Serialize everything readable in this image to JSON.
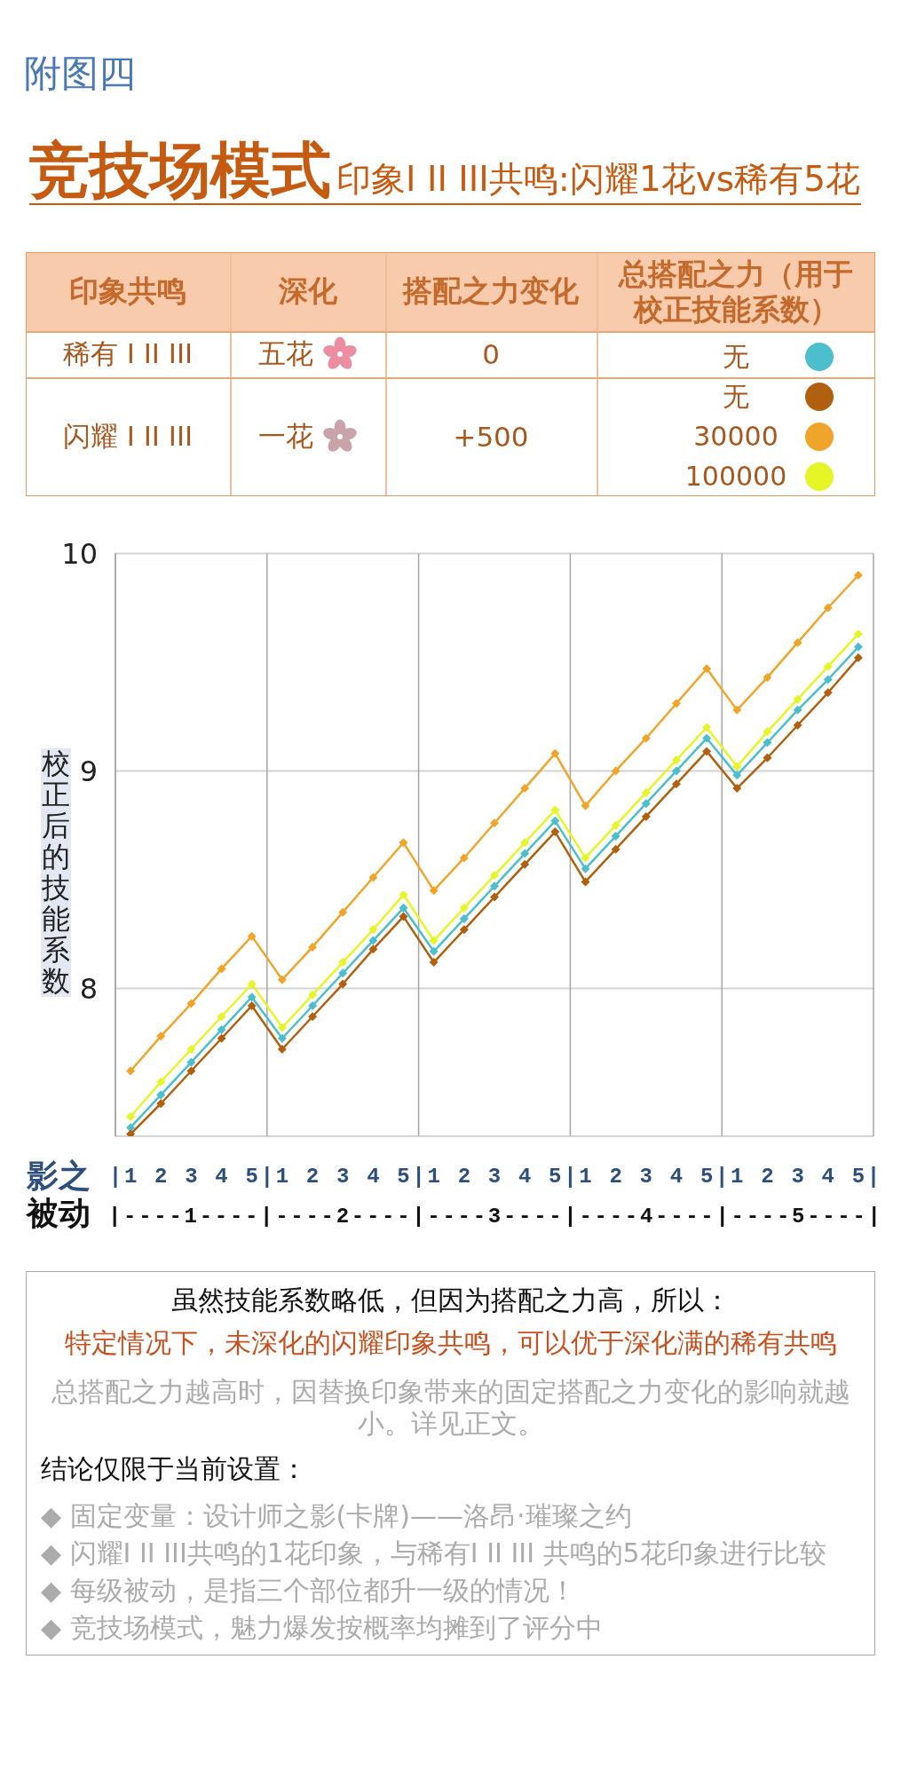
{
  "chart_data": {
    "type": "line",
    "title": "竞技场模式",
    "subtitle": "印象I II III共鸣:闪耀1花vs稀有5花",
    "ylabel": "校正后的技能系数",
    "legend_title": "总搭配之力（用于校正技能系数）",
    "annotations": [
      "附图四",
      "印象共鸣",
      "深化",
      "搭配之力变化",
      "稀有 I II III",
      "五花",
      "0",
      "闪耀 I II III",
      "一花",
      "+500",
      "影之",
      "被动",
      "|----1----|----2----|----3----|----4----|----5----|",
      "虽然技能系数略低，但因为搭配之力高，所以：",
      "特定情况下，未深化的闪耀印象共鸣，可以优于深化满的稀有共鸣",
      "总搭配之力越高时，因替换印象带来的固定搭配之力变化的影响就越小。详见正文。",
      "结论仅限于当前设置：",
      "◆ 固定变量：设计师之影(卡牌)——洛昂·璀璨之约",
      "◆ 闪耀I II III共鸣的1花印象，与稀有I II III 共鸣的5花印象进行比较",
      "◆ 每级被动，是指三个部位都升一级的情况！",
      "◆ 竞技场模式，魅力爆发按概率均摊到了评分中"
    ],
    "categories": [
      "1",
      "2",
      "3",
      "4",
      "5",
      "1",
      "2",
      "3",
      "4",
      "5",
      "1",
      "2",
      "3",
      "4",
      "5",
      "1",
      "2",
      "3",
      "4",
      "5",
      "1",
      "2",
      "3",
      "4",
      "5"
    ],
    "ylim": [
      7.32,
      10
    ],
    "yticks": [
      8,
      9,
      10
    ],
    "grid": true,
    "legend": "top",
    "marker": "diamond",
    "series": [
      {
        "name": "无",
        "color": "#4dbecb",
        "values": [
          7.36,
          7.51,
          7.66,
          7.81,
          7.96,
          7.77,
          7.92,
          8.07,
          8.22,
          8.37,
          8.17,
          8.32,
          8.47,
          8.62,
          8.77,
          8.55,
          8.7,
          8.85,
          9.0,
          9.15,
          8.98,
          9.13,
          9.28,
          9.42,
          9.57
        ]
      },
      {
        "name": "无",
        "color": "#b0600e",
        "values": [
          7.33,
          7.47,
          7.62,
          7.77,
          7.92,
          7.72,
          7.87,
          8.02,
          8.18,
          8.33,
          8.12,
          8.27,
          8.42,
          8.57,
          8.72,
          8.49,
          8.64,
          8.79,
          8.94,
          9.09,
          8.92,
          9.06,
          9.21,
          9.36,
          9.52
        ]
      },
      {
        "name": "30000",
        "color": "#eea52a",
        "values": [
          7.62,
          7.78,
          7.93,
          8.09,
          8.24,
          8.04,
          8.19,
          8.35,
          8.51,
          8.67,
          8.45,
          8.6,
          8.76,
          8.92,
          9.08,
          8.84,
          9.0,
          9.15,
          9.31,
          9.47,
          9.28,
          9.43,
          9.59,
          9.75,
          9.9
        ]
      },
      {
        "name": "100000",
        "color": "#e6f526",
        "values": [
          7.41,
          7.57,
          7.72,
          7.87,
          8.02,
          7.82,
          7.97,
          8.12,
          8.27,
          8.43,
          8.22,
          8.37,
          8.52,
          8.67,
          8.82,
          8.6,
          8.75,
          8.9,
          9.05,
          9.2,
          9.02,
          9.18,
          9.33,
          9.48,
          9.63
        ]
      }
    ]
  }
}
